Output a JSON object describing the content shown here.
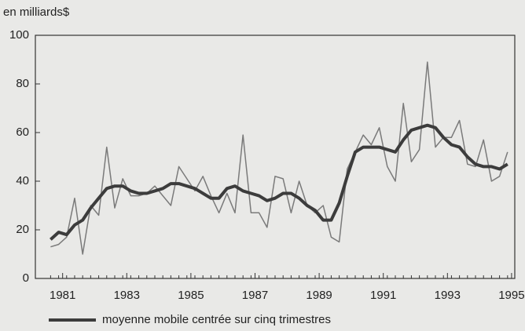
{
  "chart_data": {
    "type": "line",
    "title": "en milliards$",
    "x": [
      1981.125,
      1981.375,
      1981.625,
      1981.875,
      1982.125,
      1982.375,
      1982.625,
      1982.875,
      1983.125,
      1983.375,
      1983.625,
      1983.875,
      1984.125,
      1984.375,
      1984.625,
      1984.875,
      1985.125,
      1985.375,
      1985.625,
      1985.875,
      1986.125,
      1986.375,
      1986.625,
      1986.875,
      1987.125,
      1987.375,
      1987.625,
      1987.875,
      1988.125,
      1988.375,
      1988.625,
      1988.875,
      1989.125,
      1989.375,
      1989.625,
      1989.875,
      1990.125,
      1990.375,
      1990.625,
      1990.875,
      1991.125,
      1991.375,
      1991.625,
      1991.875,
      1992.125,
      1992.375,
      1992.625,
      1992.875,
      1993.125,
      1993.375,
      1993.625,
      1993.875,
      1994.125,
      1994.375,
      1994.625,
      1994.875,
      1995.125,
      1995.375
    ],
    "series": [
      {
        "color": "#7a7a7a",
        "width": 1.5,
        "values": [
          13,
          14,
          17,
          33,
          10,
          30,
          26,
          54,
          29,
          41,
          34,
          34,
          35,
          38,
          34,
          30,
          46,
          41,
          36,
          42,
          34,
          27,
          35,
          27,
          59,
          27,
          27,
          21,
          42,
          41,
          27,
          40,
          30,
          27,
          30,
          17,
          15,
          45,
          52,
          59,
          55,
          62,
          46,
          40,
          72,
          48,
          53,
          89,
          54,
          58,
          58,
          65,
          47,
          46,
          57,
          40,
          42,
          52
        ]
      },
      {
        "name": "moyenne mobile centrée sur cinq trimestres",
        "color": "#3c3c3c",
        "width": 4,
        "values": [
          16,
          19,
          18,
          22,
          24,
          29,
          33,
          37,
          38,
          38,
          36,
          35,
          35,
          36,
          37,
          39,
          39,
          38,
          37,
          35,
          33,
          33,
          37,
          38,
          36,
          35,
          34,
          32,
          33,
          35,
          35,
          33,
          30,
          28,
          24,
          24,
          31,
          42,
          52,
          54,
          54,
          54,
          53,
          52,
          57,
          61,
          62,
          63,
          62,
          58,
          55,
          54,
          50,
          47,
          46,
          46,
          45,
          47
        ]
      }
    ],
    "xlim": [
      1980.65,
      1995.6
    ],
    "xticks": [
      {
        "value": 1981.5,
        "label": "1981"
      },
      {
        "value": 1983.5,
        "label": "1983"
      },
      {
        "value": 1985.5,
        "label": "1985"
      },
      {
        "value": 1987.5,
        "label": "1987"
      },
      {
        "value": 1989.5,
        "label": "1989"
      },
      {
        "value": 1991.5,
        "label": "1991"
      },
      {
        "value": 1993.5,
        "label": "1993"
      },
      {
        "value": 1995.5,
        "label": "1995"
      }
    ],
    "ylim": [
      0,
      100
    ],
    "yticks": [
      0,
      20,
      40,
      60,
      80,
      100
    ]
  }
}
